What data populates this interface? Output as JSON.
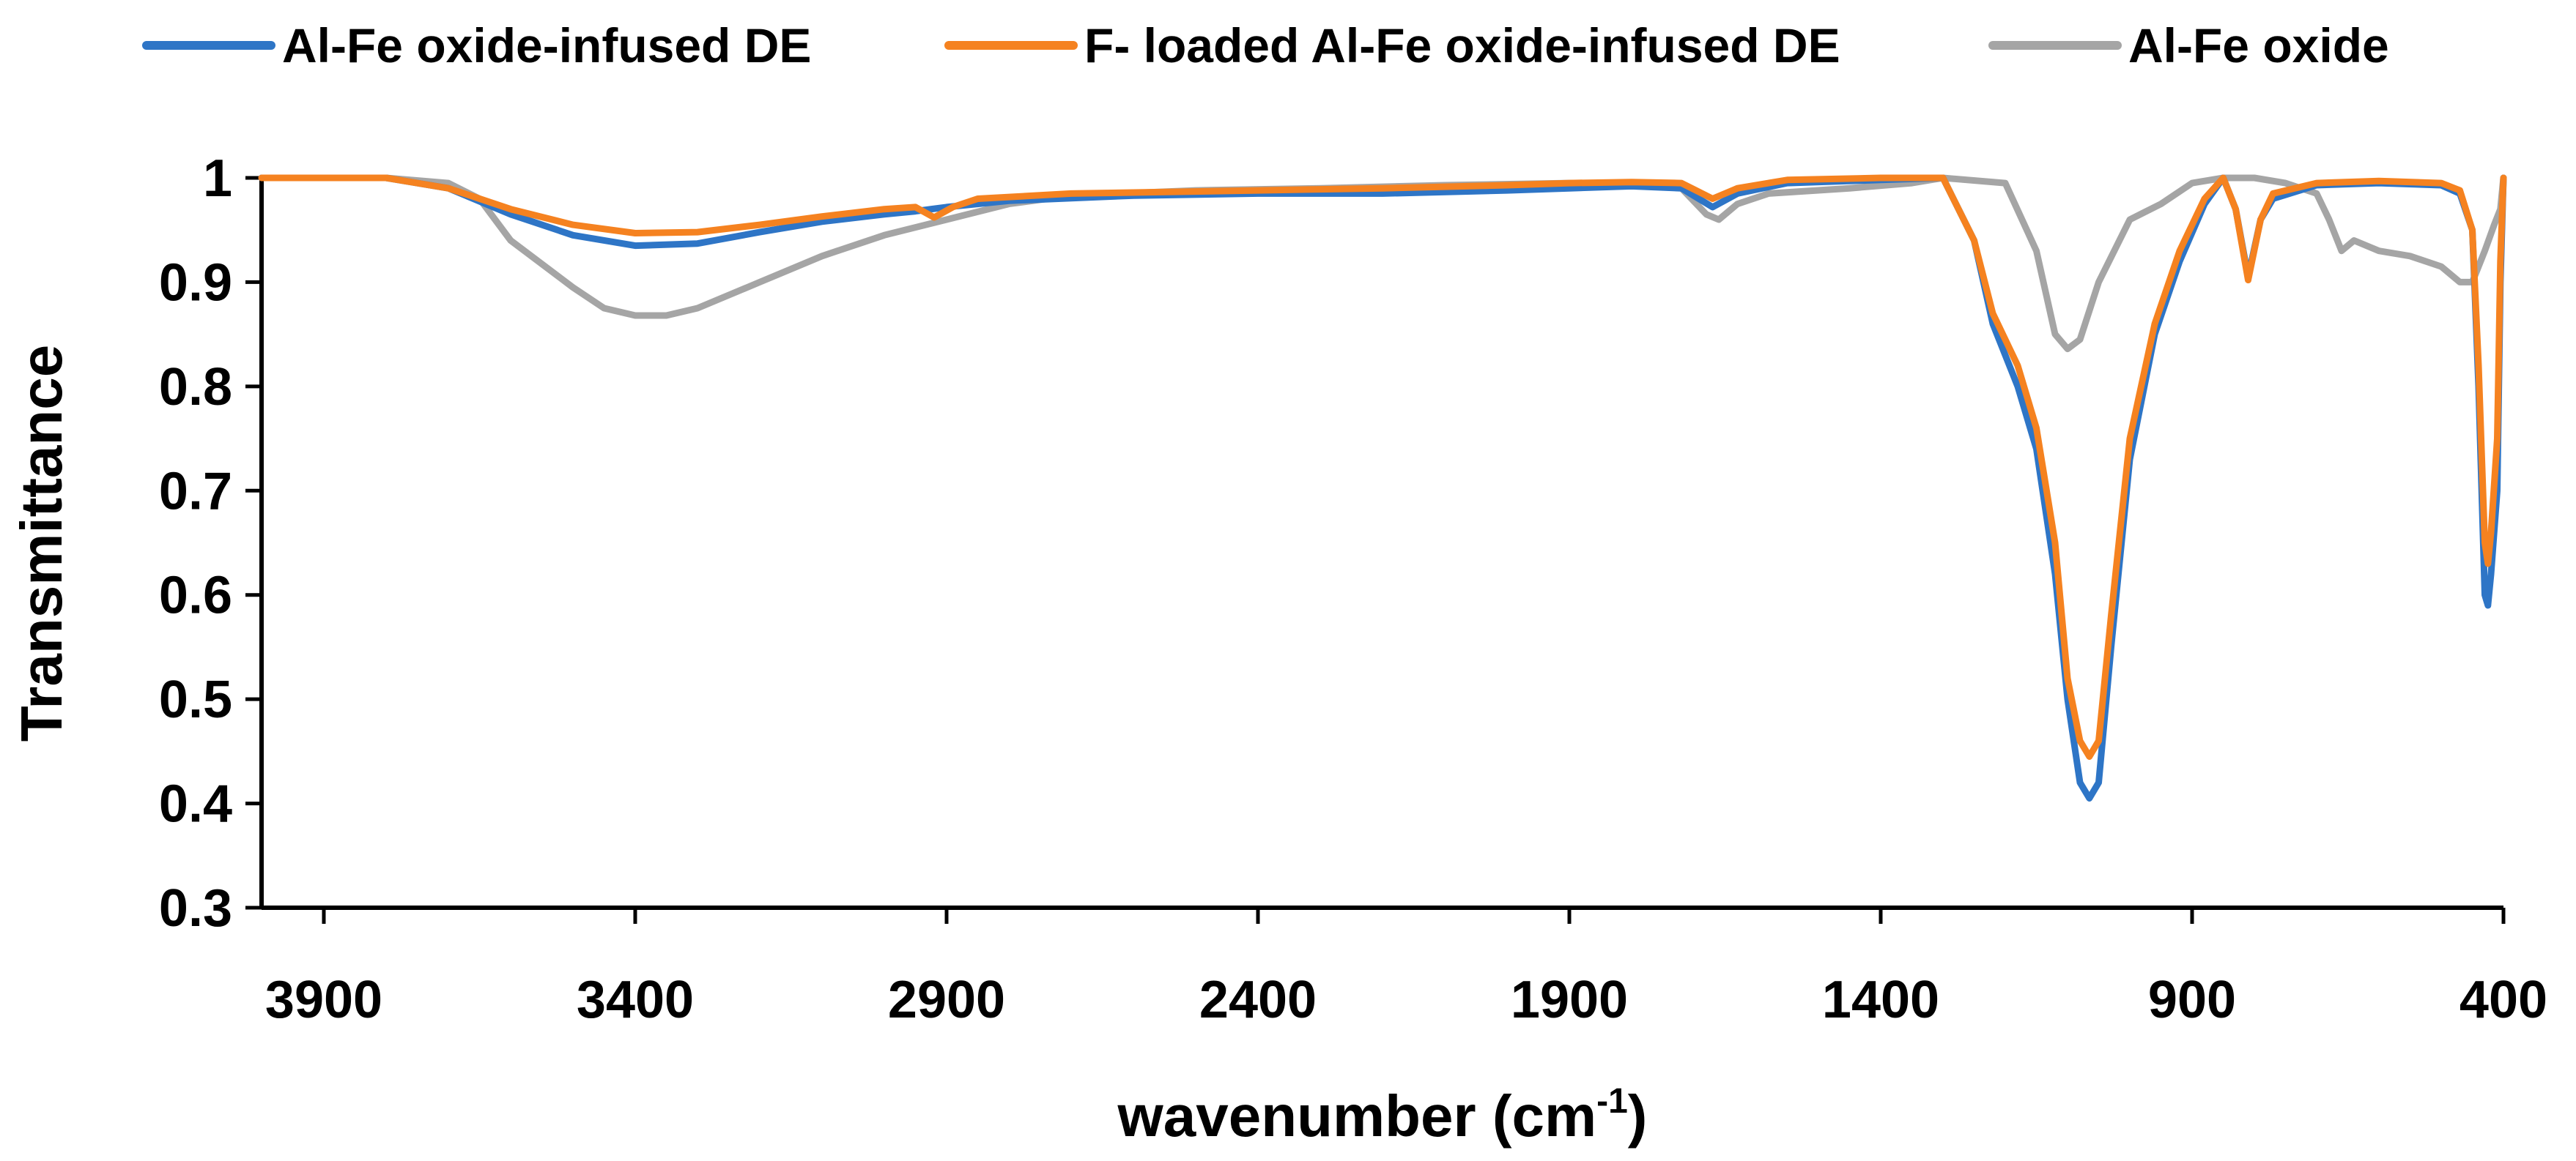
{
  "chart_data": {
    "type": "line",
    "title": "",
    "xlabel": "wavenumber (cm",
    "xlabel_sup": "-1",
    "xlabel_close": ")",
    "ylabel": "Transmittance",
    "xlim": [
      4000,
      400
    ],
    "x_reversed": true,
    "ylim": [
      0.3,
      1
    ],
    "xticks": [
      3900,
      3400,
      2900,
      2400,
      1900,
      1400,
      900,
      400
    ],
    "xtick_labels": [
      "3900",
      "3400",
      "2900",
      "2400",
      "1900",
      "1400",
      "900",
      "400"
    ],
    "yticks": [
      0.3,
      0.4,
      0.5,
      0.6,
      0.7,
      0.8,
      0.9,
      1
    ],
    "ytick_labels": [
      "0.3",
      "0.4",
      "0.5",
      "0.6",
      "0.7",
      "0.8",
      "0.9",
      "1"
    ],
    "grid": false,
    "legend_position": "top",
    "series": [
      {
        "name": "Al-Fe oxide-infused DE",
        "color": "#2E75C6",
        "points": [
          [
            4000,
            1
          ],
          [
            3800,
            1
          ],
          [
            3700,
            0.99
          ],
          [
            3600,
            0.965
          ],
          [
            3500,
            0.945
          ],
          [
            3400,
            0.935
          ],
          [
            3300,
            0.937
          ],
          [
            3200,
            0.948
          ],
          [
            3100,
            0.958
          ],
          [
            3000,
            0.965
          ],
          [
            2950,
            0.968
          ],
          [
            2900,
            0.972
          ],
          [
            2800,
            0.978
          ],
          [
            2600,
            0.983
          ],
          [
            2400,
            0.985
          ],
          [
            2200,
            0.985
          ],
          [
            2000,
            0.988
          ],
          [
            1900,
            0.99
          ],
          [
            1800,
            0.992
          ],
          [
            1720,
            0.99
          ],
          [
            1670,
            0.972
          ],
          [
            1630,
            0.985
          ],
          [
            1550,
            0.995
          ],
          [
            1400,
            0.998
          ],
          [
            1300,
            1
          ],
          [
            1250,
            0.94
          ],
          [
            1220,
            0.86
          ],
          [
            1180,
            0.8
          ],
          [
            1150,
            0.74
          ],
          [
            1120,
            0.62
          ],
          [
            1100,
            0.5
          ],
          [
            1080,
            0.42
          ],
          [
            1065,
            0.405
          ],
          [
            1050,
            0.42
          ],
          [
            1030,
            0.55
          ],
          [
            1000,
            0.73
          ],
          [
            960,
            0.85
          ],
          [
            920,
            0.92
          ],
          [
            880,
            0.975
          ],
          [
            850,
            1
          ],
          [
            830,
            0.97
          ],
          [
            810,
            0.905
          ],
          [
            790,
            0.96
          ],
          [
            770,
            0.98
          ],
          [
            700,
            0.993
          ],
          [
            600,
            0.995
          ],
          [
            500,
            0.993
          ],
          [
            470,
            0.985
          ],
          [
            450,
            0.95
          ],
          [
            440,
            0.8
          ],
          [
            430,
            0.6
          ],
          [
            425,
            0.59
          ],
          [
            420,
            0.62
          ],
          [
            410,
            0.7
          ],
          [
            405,
            0.9
          ],
          [
            400,
            1
          ]
        ]
      },
      {
        "name": "F- loaded Al-Fe oxide-infused DE",
        "color": "#F58220",
        "points": [
          [
            4000,
            1
          ],
          [
            3800,
            1
          ],
          [
            3700,
            0.99
          ],
          [
            3600,
            0.97
          ],
          [
            3500,
            0.955
          ],
          [
            3400,
            0.947
          ],
          [
            3300,
            0.948
          ],
          [
            3200,
            0.955
          ],
          [
            3100,
            0.963
          ],
          [
            3000,
            0.97
          ],
          [
            2950,
            0.972
          ],
          [
            2920,
            0.962
          ],
          [
            2890,
            0.972
          ],
          [
            2850,
            0.98
          ],
          [
            2700,
            0.985
          ],
          [
            2400,
            0.988
          ],
          [
            2200,
            0.99
          ],
          [
            2000,
            0.993
          ],
          [
            1900,
            0.995
          ],
          [
            1800,
            0.996
          ],
          [
            1720,
            0.995
          ],
          [
            1670,
            0.98
          ],
          [
            1630,
            0.99
          ],
          [
            1550,
            0.998
          ],
          [
            1400,
            1
          ],
          [
            1300,
            1
          ],
          [
            1250,
            0.94
          ],
          [
            1220,
            0.87
          ],
          [
            1180,
            0.82
          ],
          [
            1150,
            0.76
          ],
          [
            1120,
            0.65
          ],
          [
            1100,
            0.52
          ],
          [
            1080,
            0.46
          ],
          [
            1065,
            0.445
          ],
          [
            1050,
            0.46
          ],
          [
            1030,
            0.58
          ],
          [
            1000,
            0.75
          ],
          [
            960,
            0.86
          ],
          [
            920,
            0.93
          ],
          [
            880,
            0.98
          ],
          [
            850,
            1
          ],
          [
            830,
            0.97
          ],
          [
            810,
            0.902
          ],
          [
            790,
            0.96
          ],
          [
            770,
            0.985
          ],
          [
            700,
            0.995
          ],
          [
            600,
            0.997
          ],
          [
            500,
            0.995
          ],
          [
            470,
            0.988
          ],
          [
            450,
            0.95
          ],
          [
            440,
            0.82
          ],
          [
            430,
            0.65
          ],
          [
            425,
            0.63
          ],
          [
            420,
            0.66
          ],
          [
            410,
            0.75
          ],
          [
            405,
            0.92
          ],
          [
            400,
            1
          ]
        ]
      },
      {
        "name": "Al-Fe oxide",
        "color": "#A5A5A5",
        "points": [
          [
            4000,
            1
          ],
          [
            3800,
            1
          ],
          [
            3700,
            0.995
          ],
          [
            3650,
            0.98
          ],
          [
            3600,
            0.94
          ],
          [
            3500,
            0.895
          ],
          [
            3450,
            0.875
          ],
          [
            3400,
            0.868
          ],
          [
            3350,
            0.868
          ],
          [
            3300,
            0.875
          ],
          [
            3200,
            0.9
          ],
          [
            3100,
            0.925
          ],
          [
            3000,
            0.945
          ],
          [
            2900,
            0.96
          ],
          [
            2800,
            0.975
          ],
          [
            2700,
            0.983
          ],
          [
            2500,
            0.988
          ],
          [
            2300,
            0.99
          ],
          [
            2100,
            0.993
          ],
          [
            1900,
            0.995
          ],
          [
            1800,
            0.995
          ],
          [
            1720,
            0.99
          ],
          [
            1680,
            0.965
          ],
          [
            1660,
            0.96
          ],
          [
            1630,
            0.975
          ],
          [
            1580,
            0.985
          ],
          [
            1450,
            0.99
          ],
          [
            1350,
            0.995
          ],
          [
            1300,
            1
          ],
          [
            1200,
            0.995
          ],
          [
            1150,
            0.93
          ],
          [
            1120,
            0.85
          ],
          [
            1100,
            0.836
          ],
          [
            1080,
            0.845
          ],
          [
            1050,
            0.9
          ],
          [
            1000,
            0.96
          ],
          [
            950,
            0.975
          ],
          [
            900,
            0.995
          ],
          [
            850,
            1
          ],
          [
            800,
            1
          ],
          [
            750,
            0.995
          ],
          [
            700,
            0.985
          ],
          [
            680,
            0.96
          ],
          [
            660,
            0.93
          ],
          [
            640,
            0.94
          ],
          [
            600,
            0.93
          ],
          [
            550,
            0.925
          ],
          [
            500,
            0.915
          ],
          [
            470,
            0.9
          ],
          [
            450,
            0.9
          ],
          [
            430,
            0.93
          ],
          [
            415,
            0.955
          ],
          [
            405,
            0.97
          ],
          [
            400,
            1
          ]
        ]
      }
    ]
  }
}
